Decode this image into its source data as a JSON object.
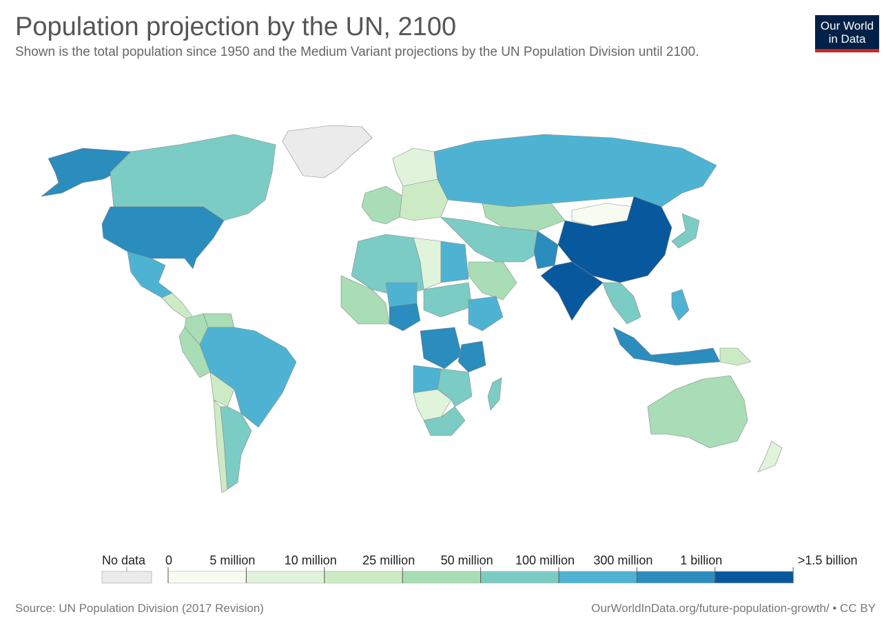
{
  "title": "Population projection by the UN, 2100",
  "subtitle": "Shown is the total population since 1950 and the Medium Variant projections by the UN Population Division until 2100.",
  "logo": {
    "line1": "Our World",
    "line2": "in Data"
  },
  "legend": {
    "no_data_label": "No data",
    "no_data_color": "#ebebeb",
    "bins": [
      {
        "from": "0",
        "to": "5 million",
        "color": "#f7fcf0"
      },
      {
        "from": "5 million",
        "to": "10 million",
        "color": "#e0f3db"
      },
      {
        "from": "10 million",
        "to": "25 million",
        "color": "#ccebc5"
      },
      {
        "from": "25 million",
        "to": "50 million",
        "color": "#a8ddb5"
      },
      {
        "from": "50 million",
        "to": "100 million",
        "color": "#7bccc4"
      },
      {
        "from": "100 million",
        "to": "300 million",
        "color": "#4eb3d3"
      },
      {
        "from": "300 million",
        "to": "1 billion",
        "color": "#2b8cbe"
      },
      {
        "from": "1 billion",
        "to": ">1.5 billion",
        "color": "#08589e"
      }
    ],
    "tick_labels": [
      "0",
      "5 million",
      "10 million",
      "25 million",
      "50 million",
      "100 million",
      "300 million",
      "1 billion",
      ">1.5 billion"
    ]
  },
  "footer": {
    "source": "Source: UN Population Division (2017 Revision)",
    "url": "OurWorldInData.org/future-population-growth/ • CC BY"
  },
  "regions": [
    {
      "name": "Greenland",
      "color": "#ebebeb"
    },
    {
      "name": "Alaska",
      "color": "#2b8cbe"
    },
    {
      "name": "Canada",
      "color": "#7bccc4"
    },
    {
      "name": "United States",
      "color": "#2b8cbe"
    },
    {
      "name": "Mexico",
      "color": "#4eb3d3"
    },
    {
      "name": "Central America",
      "color": "#ccebc5"
    },
    {
      "name": "Colombia",
      "color": "#a8ddb5"
    },
    {
      "name": "Venezuela",
      "color": "#a8ddb5"
    },
    {
      "name": "Peru",
      "color": "#a8ddb5"
    },
    {
      "name": "Brazil",
      "color": "#4eb3d3"
    },
    {
      "name": "Bolivia",
      "color": "#ccebc5"
    },
    {
      "name": "Argentina",
      "color": "#7bccc4"
    },
    {
      "name": "Chile",
      "color": "#ccebc5"
    },
    {
      "name": "Western Europe",
      "color": "#a8ddb5"
    },
    {
      "name": "Scandinavia",
      "color": "#e0f3db"
    },
    {
      "name": "Eastern Europe",
      "color": "#ccebc5"
    },
    {
      "name": "Russia",
      "color": "#4eb3d3"
    },
    {
      "name": "Kazakhstan",
      "color": "#a8ddb5"
    },
    {
      "name": "Mongolia",
      "color": "#f7fcf0"
    },
    {
      "name": "China",
      "color": "#08589e"
    },
    {
      "name": "India",
      "color": "#08589e"
    },
    {
      "name": "Pakistan",
      "color": "#2b8cbe"
    },
    {
      "name": "Middle East",
      "color": "#7bccc4"
    },
    {
      "name": "Saudi Arabia",
      "color": "#a8ddb5"
    },
    {
      "name": "Japan",
      "color": "#7bccc4"
    },
    {
      "name": "Southeast Asia",
      "color": "#7bccc4"
    },
    {
      "name": "Indonesia",
      "color": "#2b8cbe"
    },
    {
      "name": "Philippines",
      "color": "#4eb3d3"
    },
    {
      "name": "Papua New Guinea",
      "color": "#ccebc5"
    },
    {
      "name": "Australia",
      "color": "#a8ddb5"
    },
    {
      "name": "New Zealand",
      "color": "#e0f3db"
    },
    {
      "name": "North Africa",
      "color": "#7bccc4"
    },
    {
      "name": "Libya",
      "color": "#e0f3db"
    },
    {
      "name": "Egypt",
      "color": "#4eb3d3"
    },
    {
      "name": "West Africa",
      "color": "#a8ddb5"
    },
    {
      "name": "Nigeria",
      "color": "#2b8cbe"
    },
    {
      "name": "Niger",
      "color": "#4eb3d3"
    },
    {
      "name": "Sudan",
      "color": "#7bccc4"
    },
    {
      "name": "Ethiopia",
      "color": "#4eb3d3"
    },
    {
      "name": "DR Congo",
      "color": "#2b8cbe"
    },
    {
      "name": "Tanzania",
      "color": "#2b8cbe"
    },
    {
      "name": "Angola",
      "color": "#4eb3d3"
    },
    {
      "name": "Southern Africa",
      "color": "#7bccc4"
    },
    {
      "name": "Namibia / Botswana",
      "color": "#e0f3db"
    },
    {
      "name": "Madagascar",
      "color": "#7bccc4"
    }
  ]
}
